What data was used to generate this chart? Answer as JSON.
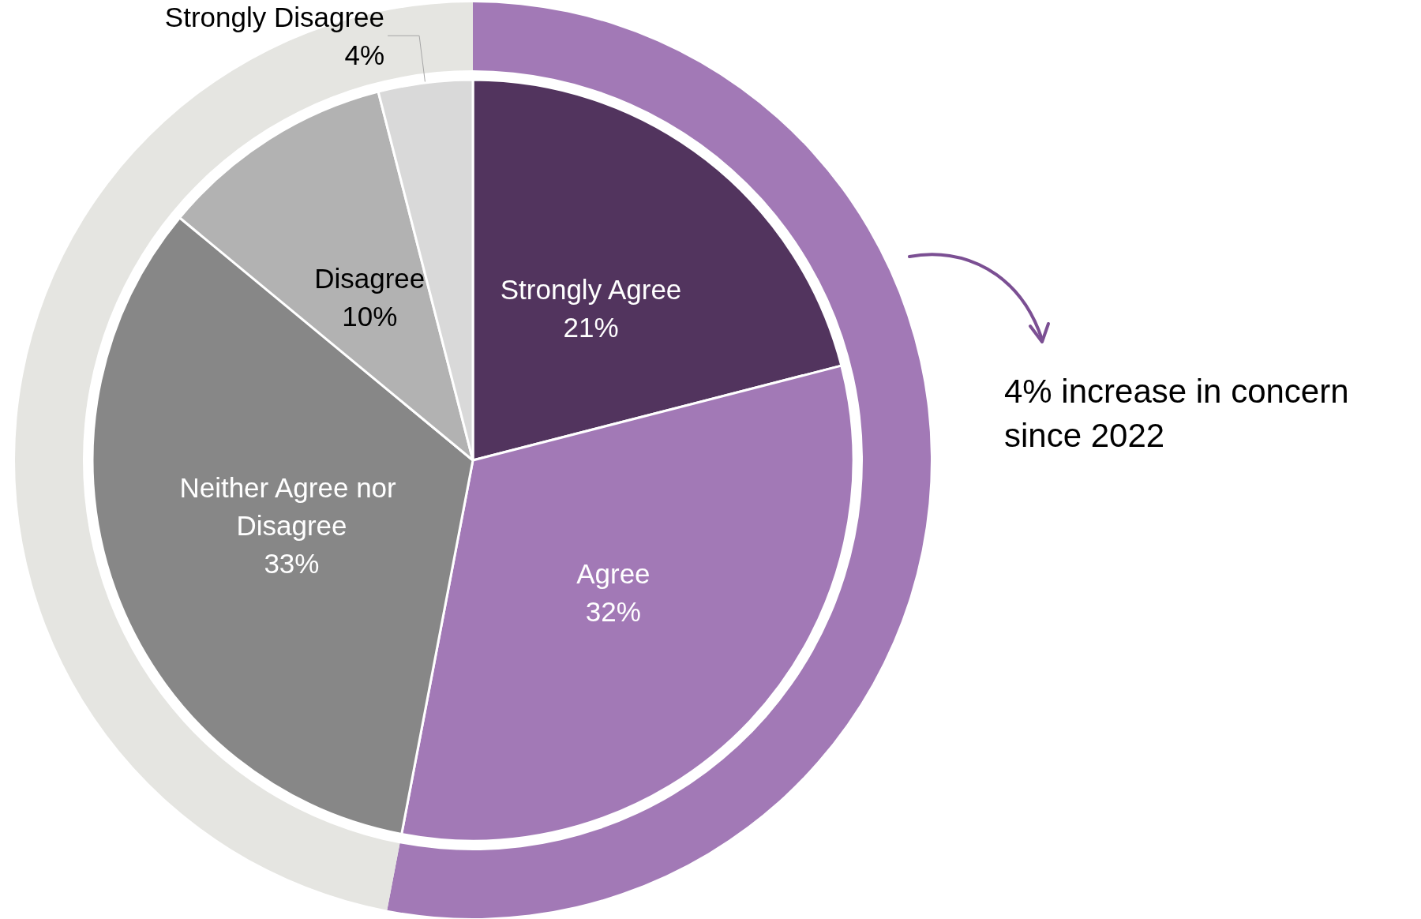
{
  "chart_data": [
    {
      "type": "pie",
      "categories": [
        "Strongly Agree",
        "Agree",
        "Neither Agree nor Disagree",
        "Disagree",
        "Strongly Disagree"
      ],
      "values": [
        21,
        32,
        33,
        10,
        4
      ],
      "colors": [
        "#52345e",
        "#a279b6",
        "#878787",
        "#b2b2b2",
        "#d9d9d9"
      ],
      "value_labels": [
        "21%",
        "32%",
        "33%",
        "10%",
        "4%"
      ]
    },
    {
      "type": "donut",
      "categories": [
        null,
        null
      ],
      "values": [
        53,
        47
      ],
      "colors": [
        "#a279b6",
        "#e5e5e1"
      ],
      "annotations": [
        "4% increase in concern since 2022"
      ]
    }
  ]
}
